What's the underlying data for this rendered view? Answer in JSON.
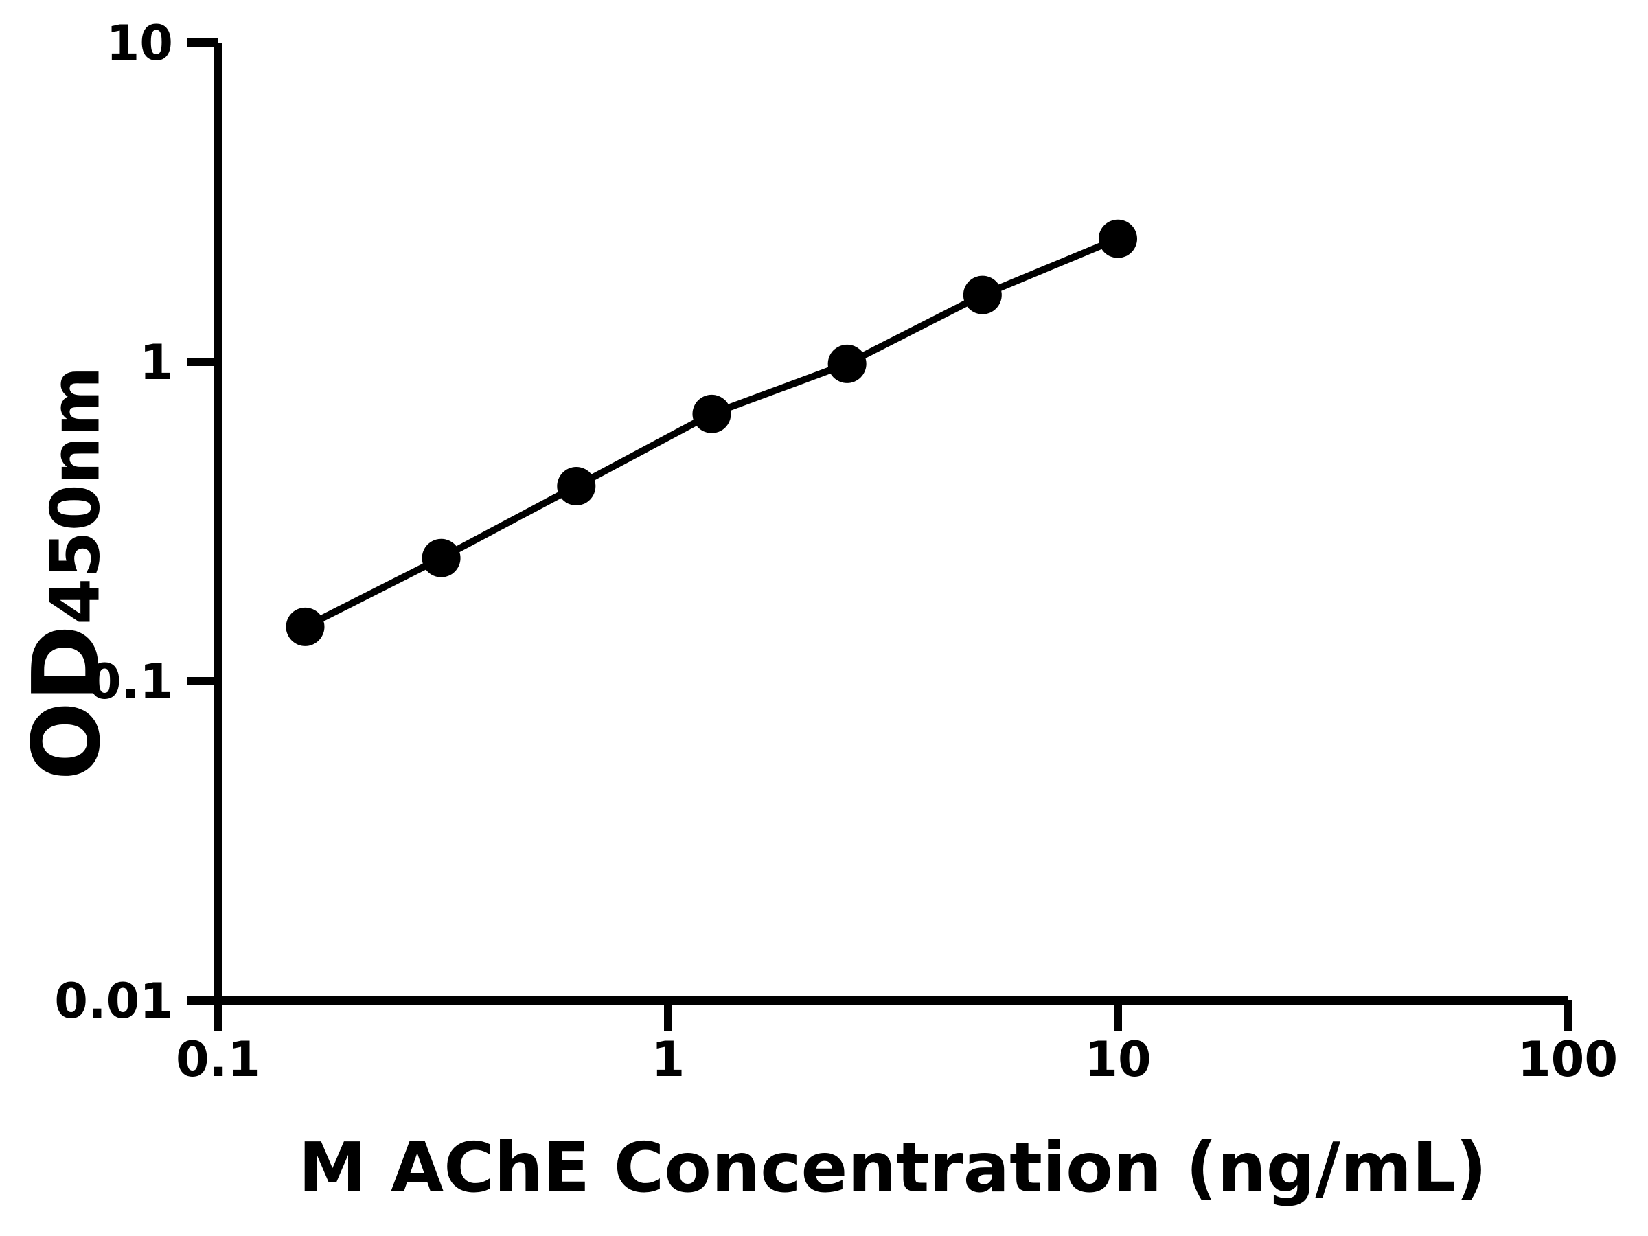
{
  "chart_data": {
    "type": "line",
    "title": "",
    "xlabel": "M AChE Concentration (ng/mL)",
    "ylabel": "OD450nm",
    "ylabel_main": "OD",
    "ylabel_sub": "450nm",
    "xscale": "log",
    "yscale": "log",
    "xlim": [
      0.1,
      100
    ],
    "ylim": [
      0.01,
      10
    ],
    "x_ticks": {
      "values": [
        0.1,
        1,
        10,
        100
      ],
      "labels": [
        "0.1",
        "1",
        "10",
        "100"
      ]
    },
    "y_ticks": {
      "values": [
        10,
        1,
        0.1,
        0.01
      ],
      "labels": [
        "10",
        "1",
        "0.1",
        "0.01"
      ]
    },
    "series": [
      {
        "x": [
          0.156,
          0.313,
          0.625,
          1.25,
          2.5,
          5,
          10
        ],
        "y": [
          0.148,
          0.243,
          0.408,
          0.687,
          0.986,
          1.62,
          2.43
        ],
        "marker": "circle",
        "color": "#000000"
      }
    ],
    "grid": false,
    "legend": false,
    "background": "#ffffff",
    "axis_color": "#000000"
  }
}
